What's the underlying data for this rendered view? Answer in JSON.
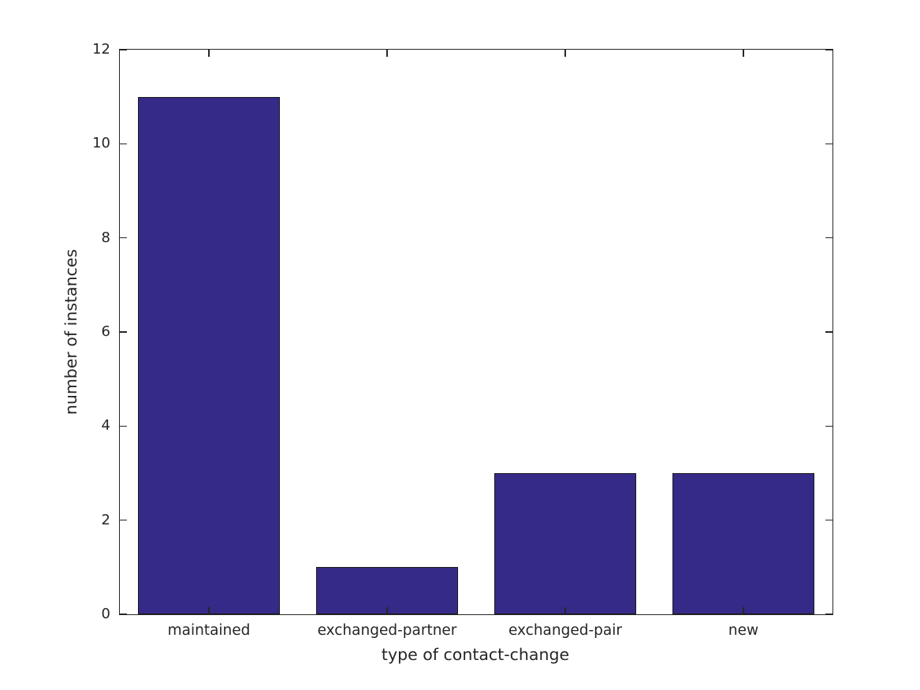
{
  "figure": {
    "background_color": "#ffffff",
    "axis_color": "#262626",
    "text_color": "#262626"
  },
  "chart_data": {
    "type": "bar",
    "title": "",
    "xlabel": "type of contact-change",
    "ylabel": "number of instances",
    "categories": [
      "maintained",
      "exchanged-partner",
      "exchanged-pair",
      "new"
    ],
    "values": [
      11,
      1,
      3,
      3
    ],
    "ylim": [
      0,
      12
    ],
    "yticks": [
      0,
      2,
      4,
      6,
      8,
      10,
      12
    ],
    "bar_color": "#352a87",
    "bar_edge_color": "#1a1a1a",
    "bar_width_fraction": 0.8,
    "grid": false,
    "legend": "none",
    "box": true,
    "tick_direction": "in"
  }
}
